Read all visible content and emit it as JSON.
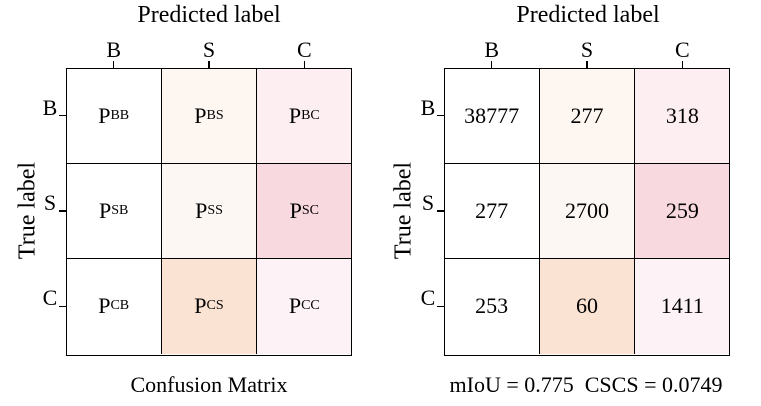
{
  "chart_data": [
    {
      "type": "heatmap",
      "title": "Predicted label",
      "ylabel": "True label",
      "x_categories": [
        "B",
        "S",
        "C"
      ],
      "y_categories": [
        "B",
        "S",
        "C"
      ],
      "cell_labels": [
        [
          {
            "main": "P",
            "sub": "BB"
          },
          {
            "main": "P",
            "sub": "BS"
          },
          {
            "main": "P",
            "sub": "BC"
          }
        ],
        [
          {
            "main": "P",
            "sub": "SB"
          },
          {
            "main": "P",
            "sub": "SS"
          },
          {
            "main": "P",
            "sub": "SC"
          }
        ],
        [
          {
            "main": "P",
            "sub": "CB"
          },
          {
            "main": "P",
            "sub": "CS"
          },
          {
            "main": "P",
            "sub": "CC"
          }
        ]
      ],
      "cell_colors": [
        [
          "#ffffff",
          "#fdf6f1",
          "#fdeef1"
        ],
        [
          "#ffffff",
          "#fdf7f3",
          "#f8d9e0"
        ],
        [
          "#ffffff",
          "#fae3d3",
          "#fdf2f5"
        ]
      ],
      "caption": "Confusion Matrix"
    },
    {
      "type": "heatmap",
      "title": "Predicted label",
      "ylabel": "True label",
      "x_categories": [
        "B",
        "S",
        "C"
      ],
      "y_categories": [
        "B",
        "S",
        "C"
      ],
      "values": [
        [
          38777,
          277,
          318
        ],
        [
          277,
          2700,
          259
        ],
        [
          253,
          60,
          1411
        ]
      ],
      "cell_colors": [
        [
          "#ffffff",
          "#fdf6f1",
          "#fdeef1"
        ],
        [
          "#ffffff",
          "#fdf7f3",
          "#f8d9e0"
        ],
        [
          "#ffffff",
          "#fae3d3",
          "#fdf2f5"
        ]
      ],
      "caption": "mIoU = 0.775  CSCS = 0.0749"
    }
  ]
}
